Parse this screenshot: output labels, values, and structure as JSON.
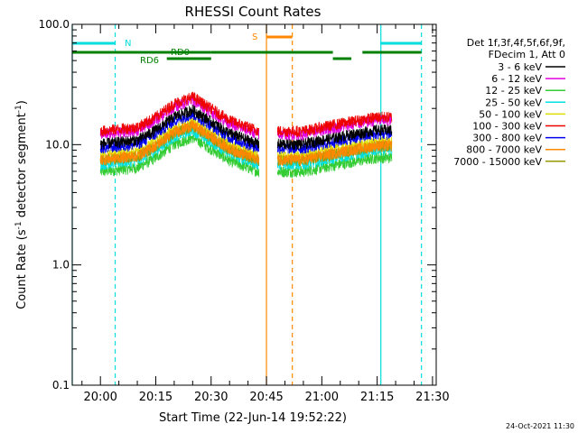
{
  "chart_data": {
    "type": "line",
    "title": "RHESSI Count Rates",
    "xlabel": "Start Time (22-Jun-14 19:52:22)",
    "ylabel": "Count Rate (s⁻¹ detector segment⁻¹)",
    "ylabel_parts": {
      "main": "Count Rate (s",
      "exp1": "-1",
      "mid": " detector segment",
      "exp2": "-1",
      "end": ")"
    },
    "yscale": "log",
    "ylim": [
      0.1,
      100.0
    ],
    "xlim": [
      "19:52:22",
      "21:31:00"
    ],
    "x_ticks": [
      "20:00",
      "20:15",
      "20:30",
      "20:45",
      "21:00",
      "21:15",
      "21:30"
    ],
    "y_ticks": [
      "0.1",
      "1.0",
      "10.0",
      "100.0"
    ],
    "grid": false,
    "legend_position": "right",
    "legend_header": [
      "Det 1f,3f,4f,5f,6f,9f,",
      "FDecim 1, Att 0"
    ],
    "series": [
      {
        "name": "3 - 6 keV",
        "color": "#000000"
      },
      {
        "name": "6 - 12 keV",
        "color": "#e000e0"
      },
      {
        "name": "12 - 25 keV",
        "color": "#33cc33"
      },
      {
        "name": "25 - 50 keV",
        "color": "#00e0e0"
      },
      {
        "name": "50 - 100 keV",
        "color": "#dddd00"
      },
      {
        "name": "100 - 300 keV",
        "color": "#ee0000"
      },
      {
        "name": "300 - 800 keV",
        "color": "#0000ee"
      },
      {
        "name": "800 - 7000 keV",
        "color": "#ff8800"
      },
      {
        "name": "7000 - 15000 keV",
        "color": "#999900"
      }
    ],
    "profile": {
      "segments": [
        {
          "start": "20:00",
          "end": "20:43",
          "points": [
            [
              "20:00",
              13
            ],
            [
              "20:10",
              14
            ],
            [
              "20:15",
              17
            ],
            [
              "20:20",
              22
            ],
            [
              "20:25",
              25
            ],
            [
              "20:30",
              20
            ],
            [
              "20:35",
              16
            ],
            [
              "20:40",
              14
            ],
            [
              "20:43",
              13
            ]
          ]
        },
        {
          "start": "20:48",
          "end": "21:19",
          "points": [
            [
              "20:48",
              13
            ],
            [
              "20:55",
              13
            ],
            [
              "21:00",
              14
            ],
            [
              "21:05",
              15
            ],
            [
              "21:10",
              16
            ],
            [
              "21:15",
              17
            ],
            [
              "21:19",
              17
            ]
          ]
        }
      ],
      "series_ratios": [
        0.78,
        0.94,
        0.46,
        0.53,
        0.62,
        1.0,
        0.72,
        0.58,
        0.57
      ]
    },
    "attenuator_bars": [
      {
        "label": "N",
        "color": "#00dddd",
        "spans": [
          [
            "19:52:22",
            "20:04"
          ],
          [
            "21:16",
            "21:27"
          ]
        ]
      },
      {
        "label": "S",
        "color": "#ff8800",
        "spans": [
          [
            "20:45",
            "20:52"
          ]
        ]
      },
      {
        "label": "RD0",
        "color": "#008000",
        "spans": [
          [
            "19:52:22",
            "20:30"
          ],
          [
            "20:30",
            "21:03"
          ],
          [
            "21:11",
            "21:27"
          ]
        ]
      },
      {
        "label": "RD6",
        "color": "#008000",
        "spans": [
          [
            "20:18",
            "20:30"
          ],
          [
            "21:03",
            "21:08"
          ]
        ]
      }
    ],
    "vertical_markers": [
      {
        "time": "19:52:22",
        "color": "#00dddd",
        "style": "solid"
      },
      {
        "time": "20:04",
        "color": "#00dddd",
        "style": "dashed"
      },
      {
        "time": "20:45",
        "color": "#ff8800",
        "style": "solid"
      },
      {
        "time": "20:52",
        "color": "#ff8800",
        "style": "dashed"
      },
      {
        "time": "21:16",
        "color": "#00dddd",
        "style": "solid"
      },
      {
        "time": "21:27",
        "color": "#00dddd",
        "style": "dashed"
      }
    ]
  },
  "footer": {
    "date": "24-Oct-2021 11:30"
  }
}
